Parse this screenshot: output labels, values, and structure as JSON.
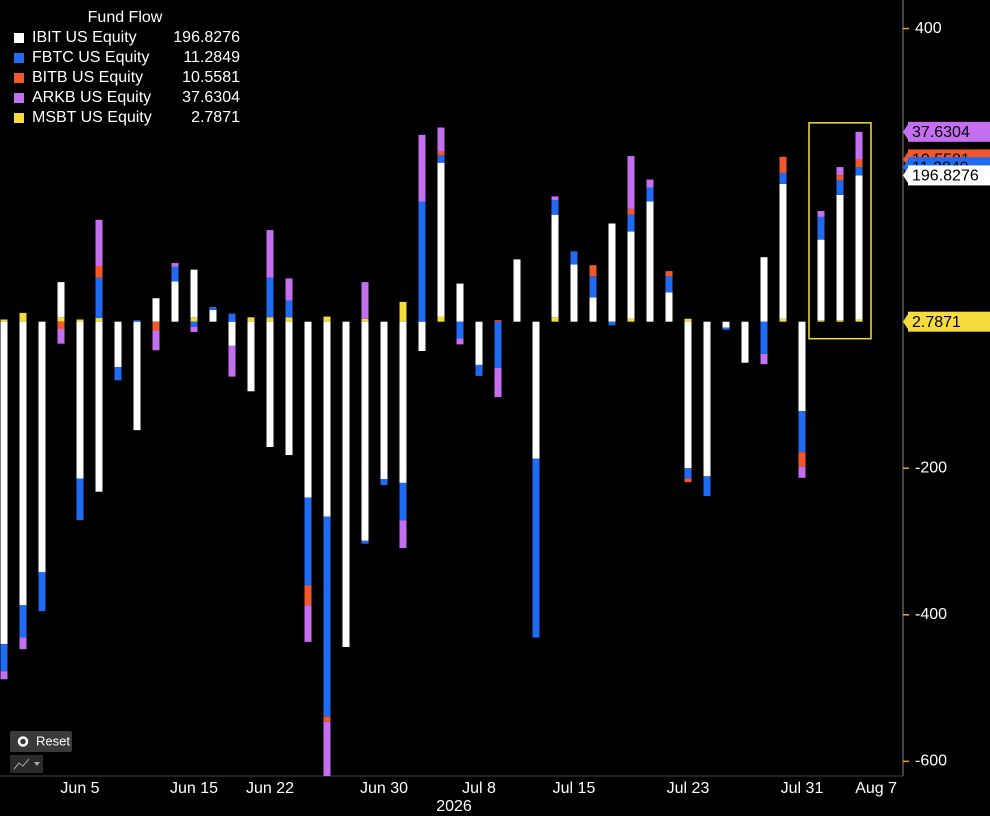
{
  "chart_data": {
    "type": "stacked_bar",
    "legend_title": "Fund Flow",
    "legend_corner": "top-left",
    "xlabel": "2026",
    "categories": [
      null,
      null,
      null,
      null,
      "Jun 5",
      null,
      null,
      null,
      null,
      null,
      "Jun 15",
      null,
      null,
      null,
      "Jun 22",
      null,
      null,
      null,
      null,
      null,
      "Jun 30",
      null,
      null,
      null,
      null,
      "Jul 8",
      null,
      null,
      null,
      null,
      "Jul 15",
      null,
      null,
      null,
      null,
      null,
      "Jul 23",
      null,
      null,
      null,
      null,
      null,
      "Jul 31",
      null,
      null,
      null,
      null,
      "Aug 7"
    ],
    "ylim": [
      -620,
      439
    ],
    "yticks": [
      400,
      -200,
      -400,
      -600
    ],
    "highlight_last": 3,
    "series": [
      {
        "name": "IBIT US Equity",
        "color": "#ffffff",
        "values": [
          -440,
          -387,
          -342,
          48,
          -214,
          -232,
          -62,
          -148,
          32,
          55,
          65,
          16,
          -33,
          -95,
          -171,
          -182,
          -240,
          -266,
          -444,
          -299,
          -215,
          -220,
          -40,
          210,
          52,
          -59,
          0,
          85,
          -187,
          140,
          78,
          33,
          134,
          119,
          164,
          40,
          -200,
          -211,
          -8,
          -56,
          88,
          184,
          -122,
          110,
          171,
          196.8276,
          null,
          null
        ]
      },
      {
        "name": "FBTC US Equity",
        "color": "#1f6cf2",
        "values": [
          -37,
          -44,
          -53,
          0,
          -57,
          55,
          -18,
          2,
          0,
          20,
          -7,
          4,
          11,
          0,
          54,
          23,
          -120,
          -273,
          0,
          -4,
          -8,
          -51,
          164,
          10,
          -23,
          -15,
          -63,
          0,
          -244,
          20,
          18,
          29,
          -5,
          23,
          19,
          22,
          -14,
          -27,
          -3,
          0,
          -44,
          15,
          -56,
          31,
          20,
          11.2849,
          null,
          null
        ]
      },
      {
        "name": "BITB US Equity",
        "color": "#f4582a",
        "values": [
          0,
          0,
          0,
          -10,
          0,
          16,
          0,
          0,
          -12,
          0,
          0,
          0,
          0,
          0,
          0,
          0,
          -27,
          -7,
          0,
          0,
          0,
          0,
          0,
          5,
          0,
          0,
          2,
          0,
          0,
          0,
          0,
          15,
          0,
          8,
          0,
          7,
          -5,
          0,
          0,
          0,
          0,
          22,
          -20,
          0,
          7,
          10.5581,
          null,
          null
        ]
      },
      {
        "name": "ARKB US Equity",
        "color": "#c46ff0",
        "values": [
          -11,
          -16,
          0,
          -20,
          0,
          63,
          0,
          0,
          -27,
          5,
          -7,
          0,
          -42,
          0,
          65,
          30,
          -50,
          -74,
          0,
          50,
          0,
          -38,
          91,
          33,
          -8,
          0,
          -40,
          0,
          0,
          5,
          0,
          0,
          0,
          72,
          11,
          0,
          0,
          0,
          0,
          0,
          -14,
          0,
          -15,
          8,
          11,
          37.6304,
          null,
          null
        ]
      },
      {
        "name": "MSBT US Equity",
        "color": "#f5dc3c",
        "values": [
          3,
          12,
          0,
          6,
          3,
          5,
          0,
          0,
          0,
          0,
          6,
          0,
          0,
          6,
          6,
          6,
          0,
          7,
          0,
          4,
          0,
          27,
          0,
          7,
          0,
          0,
          0,
          0,
          0,
          6,
          0,
          0,
          0,
          4,
          0,
          0,
          4,
          0,
          0,
          0,
          0,
          4,
          0,
          2,
          2,
          2.7871,
          null,
          null
        ]
      }
    ]
  },
  "controls": {
    "reset": "Reset"
  }
}
